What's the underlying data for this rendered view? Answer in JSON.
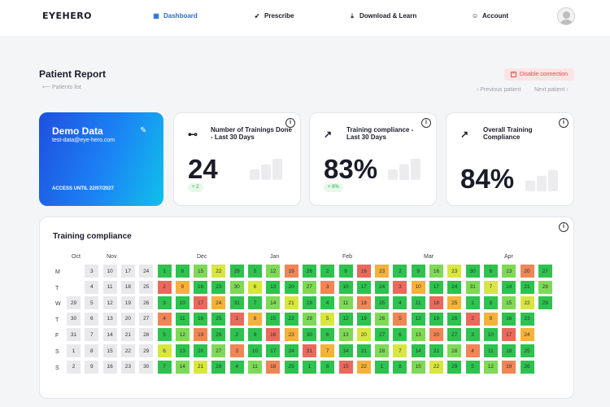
{
  "header": {
    "logo": "EYEHERO",
    "nav": [
      {
        "label": "Dashboard",
        "icon": "grid-icon",
        "active": true
      },
      {
        "label": "Prescribe",
        "icon": "rocket-icon",
        "active": false
      },
      {
        "label": "Download & Learn",
        "icon": "download-icon",
        "active": false
      },
      {
        "label": "Account",
        "icon": "user-icon",
        "active": false
      }
    ]
  },
  "page": {
    "title": "Patient Report",
    "back_link": "Patients list",
    "disconnect_label": "Disable connection",
    "previous_label": "Previous patient",
    "next_label": "Next patient"
  },
  "patient": {
    "name": "Demo Data",
    "email": "test-data@eye-hero.com",
    "access": "ACCESS UNTIL 22/07/2027"
  },
  "stats": [
    {
      "title": "Number of Trainings Done - Last 30 Days",
      "value": "24",
      "badge": "+ 2",
      "icon": "dumbbell-icon"
    },
    {
      "title": "Training compliance - Last 30 Days",
      "value": "83%",
      "badge": "+ 8%",
      "icon": "trend-up-icon"
    },
    {
      "title": "Overall Training Compliance",
      "value": "84%",
      "badge": "",
      "icon": "trend-up-icon"
    }
  ],
  "heatmap": {
    "title": "Training compliance",
    "months": [
      "Oct",
      "Nov",
      "Dec",
      "Jan",
      "Feb",
      "Mar",
      "Apr"
    ],
    "weekdays": [
      "M",
      "T",
      "W",
      "T",
      "F",
      "S",
      "S"
    ],
    "rows": [
      [
        "",
        "3",
        "10",
        "17",
        "24",
        "1",
        "8",
        "15",
        "22",
        "29",
        "5",
        "12",
        "19",
        "26",
        "2",
        "9",
        "16",
        "23",
        "2",
        "9",
        "16",
        "23",
        "30",
        "6",
        "13",
        "20",
        "27"
      ],
      [
        "",
        "4",
        "11",
        "18",
        "25",
        "2",
        "9",
        "16",
        "23",
        "30",
        "6",
        "13",
        "20",
        "27",
        "3",
        "10",
        "17",
        "24",
        "3",
        "10",
        "17",
        "24",
        "31",
        "7",
        "14",
        "21",
        "28"
      ],
      [
        "29",
        "5",
        "12",
        "19",
        "26",
        "3",
        "10",
        "17",
        "24",
        "31",
        "7",
        "14",
        "21",
        "28",
        "4",
        "11",
        "18",
        "25",
        "4",
        "11",
        "18",
        "25",
        "1",
        "8",
        "15",
        "22",
        "29"
      ],
      [
        "30",
        "6",
        "13",
        "20",
        "27",
        "4",
        "11",
        "18",
        "25",
        "1",
        "8",
        "15",
        "22",
        "29",
        "5",
        "12",
        "19",
        "26",
        "5",
        "12",
        "19",
        "26",
        "2",
        "9",
        "16",
        "23",
        ""
      ],
      [
        "31",
        "7",
        "14",
        "21",
        "28",
        "5",
        "12",
        "19",
        "26",
        "2",
        "9",
        "16",
        "23",
        "30",
        "6",
        "13",
        "20",
        "27",
        "6",
        "13",
        "20",
        "27",
        "3",
        "10",
        "17",
        "24",
        ""
      ],
      [
        "1",
        "8",
        "15",
        "22",
        "29",
        "6",
        "13",
        "20",
        "27",
        "3",
        "10",
        "17",
        "24",
        "31",
        "7",
        "14",
        "21",
        "28",
        "7",
        "14",
        "21",
        "28",
        "4",
        "11",
        "18",
        "25",
        ""
      ],
      [
        "2",
        "9",
        "16",
        "23",
        "30",
        "7",
        "14",
        "21",
        "28",
        "4",
        "11",
        "18",
        "25",
        "1",
        "8",
        "15",
        "22",
        "1",
        "8",
        "15",
        "22",
        "29",
        "5",
        "12",
        "19",
        "26",
        ""
      ]
    ],
    "levels": [
      "-LLLLEGGRGGEGGGGGRGGRGREGRGEGG",
      "-LLLLGYGGGGEGGGGRGRGGGGYGGYG",
      "LLLLRGGRGGGGGGGGYGYYRGGGRGGGG"
    ]
  }
}
